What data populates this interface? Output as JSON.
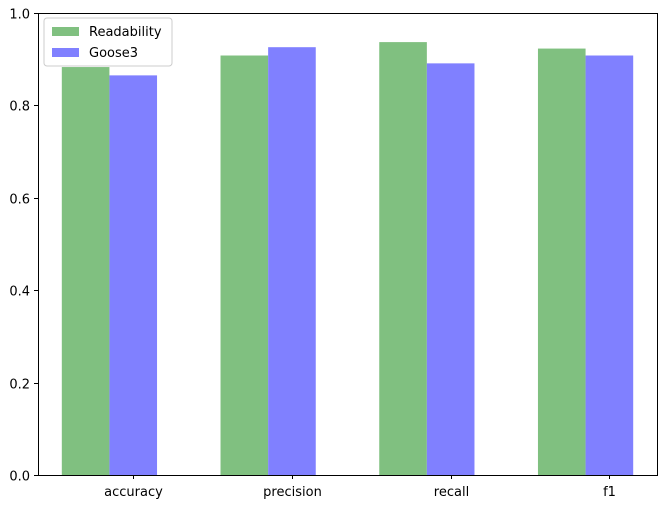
{
  "chart_data": {
    "type": "bar",
    "title": "",
    "xlabel": "",
    "ylabel": "",
    "categories": [
      "accuracy",
      "precision",
      "recall",
      "f1"
    ],
    "series": [
      {
        "name": "Readability",
        "values": [
          0.883,
          0.908,
          0.937,
          0.923
        ],
        "color": "#80c080"
      },
      {
        "name": "Goose3",
        "values": [
          0.865,
          0.926,
          0.891,
          0.908
        ],
        "color": "#8080ff"
      }
    ],
    "ylim": [
      0,
      1.0
    ],
    "yticks": [
      0.0,
      0.2,
      0.4,
      0.6,
      0.8,
      1.0
    ],
    "ytick_labels": [
      "0.0",
      "0.2",
      "0.4",
      "0.6",
      "0.8",
      "1.0"
    ],
    "grid": false,
    "legend_position": "top-left"
  }
}
